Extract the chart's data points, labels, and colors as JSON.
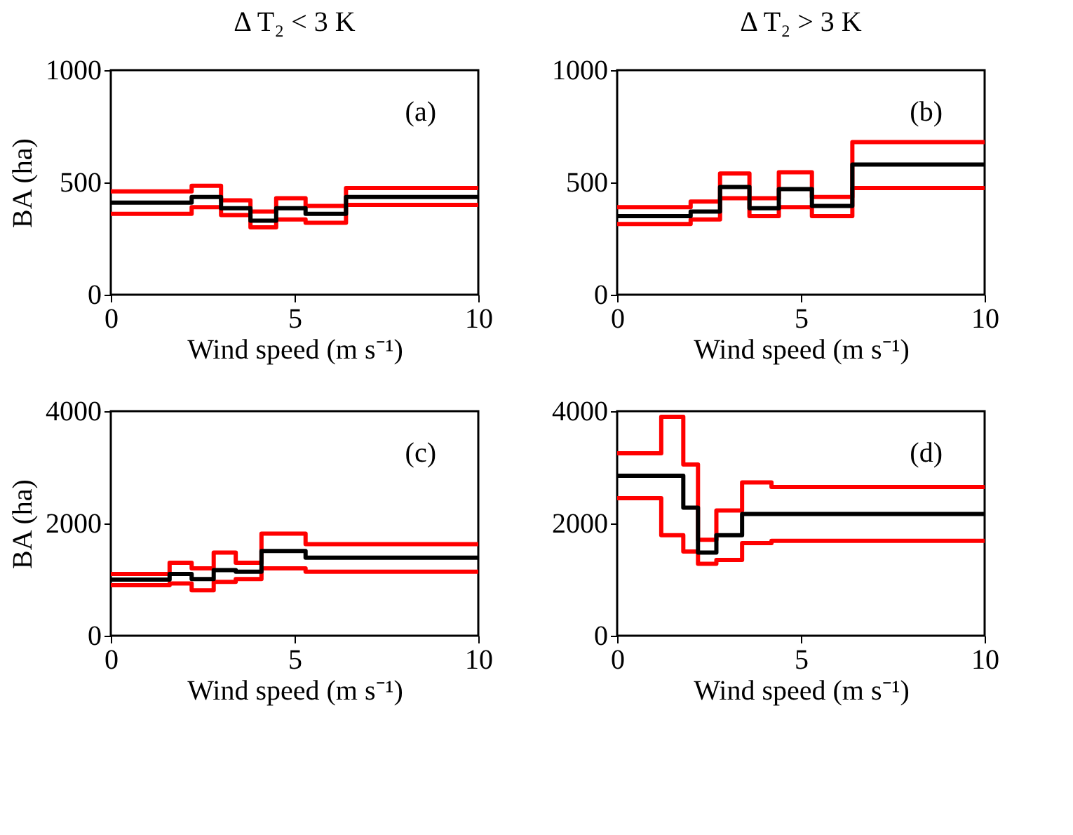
{
  "chart_data": [
    {
      "type": "step",
      "title": "Δ T₂ < 3 K",
      "xlabel": "Wind speed (m s⁻¹)",
      "ylabel": "BA (ha)",
      "annotations": [
        "(a)"
      ],
      "xlim": [
        0,
        10
      ],
      "xticks": [
        0,
        5,
        10
      ],
      "ylim": [
        0,
        1000
      ],
      "yticks": [
        0,
        500,
        1000
      ],
      "grid": false,
      "marker": "none",
      "line_style": "solid",
      "x": [
        0,
        2.2,
        3.0,
        3.8,
        4.5,
        5.3,
        6.4,
        10
      ],
      "series": [
        {
          "color": "#ff0000",
          "values": [
            460,
            485,
            420,
            370,
            430,
            395,
            475,
            475
          ]
        },
        {
          "color": "#ff0000",
          "values": [
            360,
            390,
            355,
            300,
            335,
            320,
            400,
            400
          ]
        },
        {
          "color": "#000000",
          "values": [
            410,
            435,
            385,
            330,
            385,
            360,
            435,
            435
          ]
        }
      ]
    },
    {
      "type": "step",
      "title": "Δ T₂ > 3 K",
      "xlabel": "Wind speed (m s⁻¹)",
      "annotations": [
        "(b)"
      ],
      "xlim": [
        0,
        10
      ],
      "xticks": [
        0,
        5,
        10
      ],
      "ylim": [
        0,
        1000
      ],
      "yticks": [
        0,
        500,
        1000
      ],
      "grid": false,
      "marker": "none",
      "line_style": "solid",
      "x": [
        0,
        2.0,
        2.8,
        3.6,
        4.4,
        5.3,
        6.4,
        10
      ],
      "series": [
        {
          "color": "#ff0000",
          "values": [
            390,
            415,
            540,
            430,
            545,
            435,
            680,
            680
          ]
        },
        {
          "color": "#ff0000",
          "values": [
            315,
            335,
            430,
            350,
            390,
            350,
            475,
            475
          ]
        },
        {
          "color": "#000000",
          "values": [
            350,
            370,
            480,
            385,
            470,
            395,
            580,
            580
          ]
        }
      ]
    },
    {
      "type": "step",
      "xlabel": "Wind speed (m s⁻¹)",
      "ylabel": "BA (ha)",
      "annotations": [
        "(c)"
      ],
      "xlim": [
        0,
        10
      ],
      "xticks": [
        0,
        5,
        10
      ],
      "ylim": [
        0,
        4000
      ],
      "yticks": [
        0,
        2000,
        4000
      ],
      "grid": false,
      "marker": "none",
      "line_style": "solid",
      "x": [
        0,
        1.6,
        2.2,
        2.8,
        3.4,
        4.1,
        5.3,
        10
      ],
      "series": [
        {
          "color": "#ff0000",
          "values": [
            1100,
            1300,
            1200,
            1480,
            1300,
            1820,
            1630,
            1630
          ]
        },
        {
          "color": "#ff0000",
          "values": [
            900,
            930,
            810,
            960,
            1010,
            1200,
            1140,
            1140
          ]
        },
        {
          "color": "#000000",
          "values": [
            1000,
            1100,
            1010,
            1170,
            1140,
            1510,
            1390,
            1390
          ]
        }
      ]
    },
    {
      "type": "step",
      "xlabel": "Wind speed (m s⁻¹)",
      "annotations": [
        "(d)"
      ],
      "xlim": [
        0,
        10
      ],
      "xticks": [
        0,
        5,
        10
      ],
      "ylim": [
        0,
        4000
      ],
      "yticks": [
        0,
        2000,
        4000
      ],
      "grid": false,
      "marker": "none",
      "line_style": "solid",
      "x": [
        0,
        1.2,
        1.8,
        2.2,
        2.7,
        3.4,
        4.2,
        10
      ],
      "series": [
        {
          "color": "#ff0000",
          "values": [
            3250,
            3900,
            3050,
            1710,
            2230,
            2730,
            2650,
            2650
          ]
        },
        {
          "color": "#ff0000",
          "values": [
            2450,
            1790,
            1500,
            1280,
            1350,
            1650,
            1690,
            1690
          ]
        },
        {
          "color": "#000000",
          "values": [
            2850,
            2850,
            2280,
            1480,
            1790,
            2170,
            2170,
            2170
          ]
        }
      ]
    }
  ]
}
